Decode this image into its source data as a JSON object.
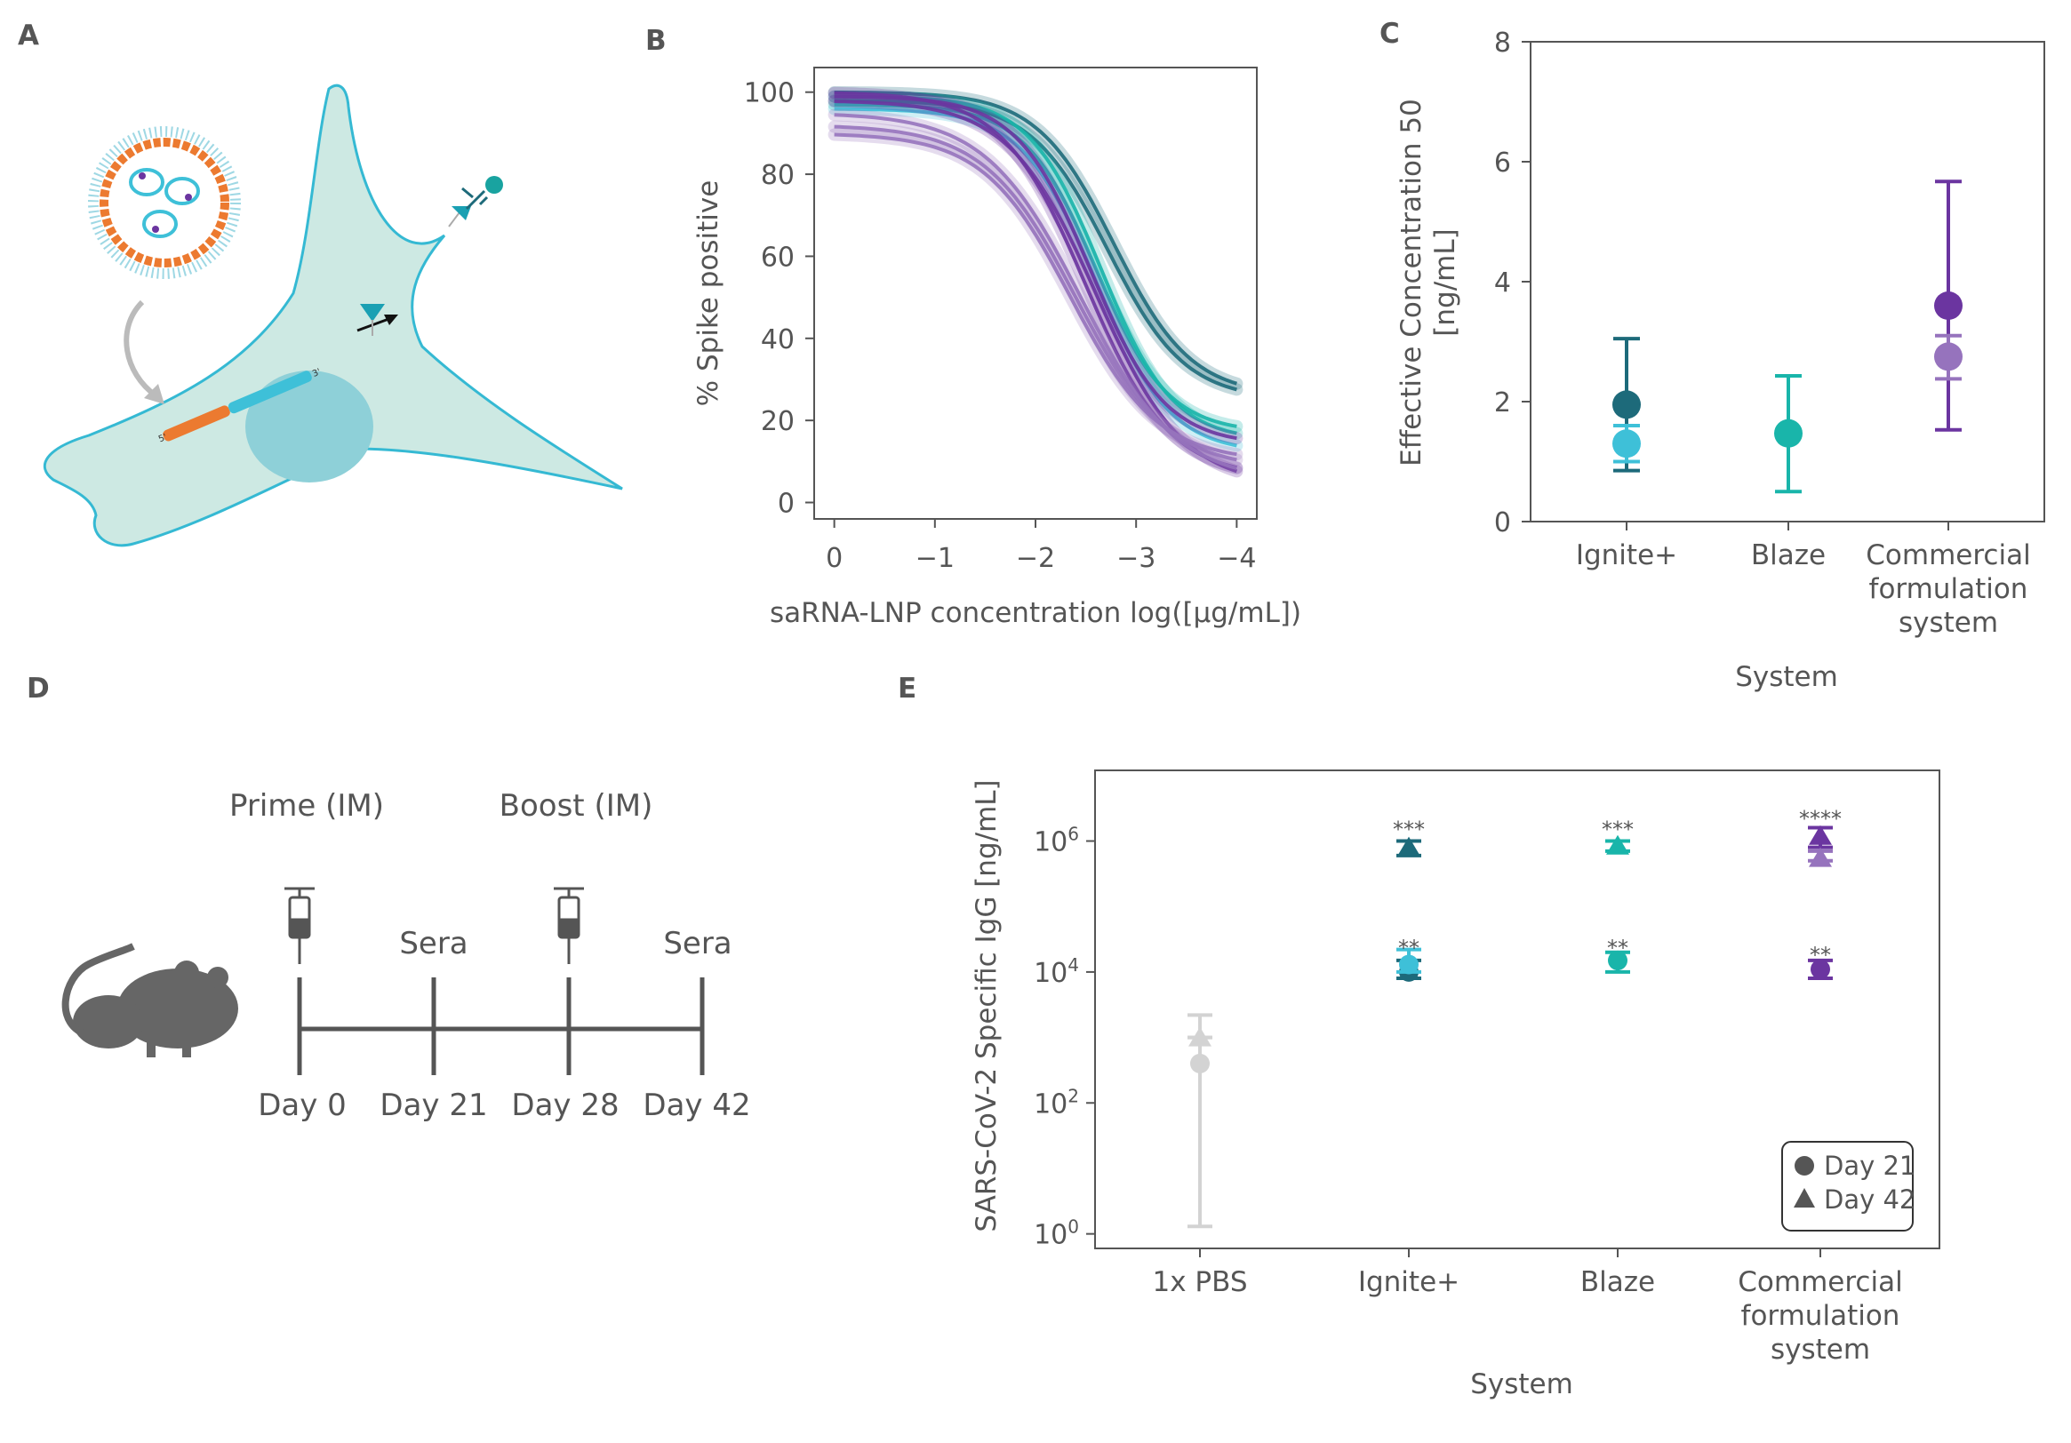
{
  "panels": {
    "a": {
      "letter": "A"
    },
    "b": {
      "letter": "B"
    },
    "c": {
      "letter": "C"
    },
    "d": {
      "letter": "D"
    },
    "e": {
      "letter": "E"
    }
  },
  "colors": {
    "dark_teal": "#1d6a7a",
    "light_teal": "#3ec0d8",
    "teal": "#19b5aa",
    "purple": "#6b35a0",
    "light_purple": "#9673bd",
    "grey": "#d3d3d3",
    "text": "#555555",
    "cell": "#cde9e3",
    "cell_edge": "#35b9d3",
    "nucleus": "#8ed0d8",
    "orange": "#ec7a30"
  },
  "timeline": {
    "prime_label": "Prime (IM)",
    "boost_label": "Boost (IM)",
    "sera_label_1": "Sera",
    "sera_label_2": "Sera",
    "days": [
      "Day 0",
      "Day 21",
      "Day 28",
      "Day 42"
    ]
  },
  "chart_data": [
    {
      "panel": "B",
      "type": "line",
      "title": "",
      "xlabel": "saRNA-LNP concentration log([μg/mL])",
      "ylabel": "% Spike positive",
      "xlim": [
        0.2,
        -4.2
      ],
      "ylim": [
        -4,
        106
      ],
      "x_ticks": [
        0,
        -1,
        -2,
        -3,
        -4
      ],
      "x_tick_labels": [
        "0",
        "−1",
        "−2",
        "−3",
        "−4"
      ],
      "y_ticks": [
        0,
        20,
        40,
        60,
        80,
        100
      ],
      "y_tick_labels": [
        "0",
        "20",
        "40",
        "60",
        "80",
        "100"
      ],
      "x_range": [
        0,
        -4
      ],
      "series": [
        {
          "name": "dark teal 1",
          "color": "#1d6a7a",
          "top": 100,
          "bottom": 26,
          "ec50": -2.78,
          "slope": 2.6
        },
        {
          "name": "dark teal 2",
          "color": "#1d6a7a",
          "top": 98,
          "bottom": 25,
          "ec50": -2.72,
          "slope": 2.6
        },
        {
          "name": "teal 1",
          "color": "#19b5aa",
          "top": 99,
          "bottom": 15,
          "ec50": -2.65,
          "slope": 2.8
        },
        {
          "name": "teal 2",
          "color": "#19b5aa",
          "top": 97,
          "bottom": 17,
          "ec50": -2.6,
          "slope": 2.8
        },
        {
          "name": "light teal",
          "color": "#3ec0d8",
          "top": 96,
          "bottom": 12,
          "ec50": -2.6,
          "slope": 2.7
        },
        {
          "name": "purple 1",
          "color": "#6b35a0",
          "top": 99,
          "bottom": 14,
          "ec50": -2.55,
          "slope": 2.7
        },
        {
          "name": "purple 2",
          "color": "#6b35a0",
          "top": 98,
          "bottom": 4,
          "ec50": -2.6,
          "slope": 2.3
        },
        {
          "name": "purple 3",
          "color": "#6b35a0",
          "top": 100,
          "bottom": 6,
          "ec50": -2.5,
          "slope": 2.4
        },
        {
          "name": "light purple 1",
          "color": "#9673bd",
          "top": 92,
          "bottom": 8,
          "ec50": -2.4,
          "slope": 2.2
        },
        {
          "name": "light purple 2",
          "color": "#9673bd",
          "top": 90,
          "bottom": 10,
          "ec50": -2.35,
          "slope": 2.3
        },
        {
          "name": "light purple 3",
          "color": "#9673bd",
          "top": 95,
          "bottom": 5,
          "ec50": -2.45,
          "slope": 2.1
        }
      ]
    },
    {
      "panel": "C",
      "type": "scatter",
      "title": "",
      "xlabel": "System",
      "ylabel_line1": "Effective Concentration 50",
      "ylabel_line2": "[ng/mL]",
      "ylim": [
        0,
        8
      ],
      "y_ticks": [
        0,
        2,
        4,
        6,
        8
      ],
      "y_tick_labels": [
        "0",
        "2",
        "4",
        "6",
        "8"
      ],
      "categories": [
        {
          "line1": "Ignite+",
          "line2": "",
          "line3": ""
        },
        {
          "line1": "Blaze",
          "line2": "",
          "line3": ""
        },
        {
          "line1": "Commercial",
          "line2": "formulation",
          "line3": "system"
        }
      ],
      "points": [
        {
          "category": 0,
          "value": 1.95,
          "low": 0.85,
          "high": 3.05,
          "color": "#1d6a7a"
        },
        {
          "category": 0,
          "value": 1.3,
          "low": 1.0,
          "high": 1.6,
          "color": "#3ec0d8"
        },
        {
          "category": 1,
          "value": 1.47,
          "low": 0.5,
          "high": 2.43,
          "color": "#19b5aa"
        },
        {
          "category": 2,
          "value": 3.6,
          "low": 1.53,
          "high": 5.67,
          "color": "#6b35a0"
        },
        {
          "category": 2,
          "value": 2.75,
          "low": 2.38,
          "high": 3.1,
          "color": "#9673bd"
        }
      ]
    },
    {
      "panel": "E",
      "type": "scatter",
      "title": "",
      "xlabel": "System",
      "ylabel": "SARS-CoV-2 Specific IgG [ng/mL]",
      "yscale": "log",
      "ylim": [
        0.6,
        12000000
      ],
      "y_ticks": [
        1,
        100,
        10000,
        1000000
      ],
      "y_tick_base": [
        "10",
        "10",
        "10",
        "10"
      ],
      "y_tick_exp": [
        "0",
        "2",
        "4",
        "6"
      ],
      "categories": [
        {
          "line1": "1x PBS",
          "line2": "",
          "line3": ""
        },
        {
          "line1": "Ignite+",
          "line2": "",
          "line3": ""
        },
        {
          "line1": "Blaze",
          "line2": "",
          "line3": ""
        },
        {
          "line1": "Commercial",
          "line2": "formulation",
          "line3": "system"
        }
      ],
      "points": [
        {
          "category": 0,
          "marker": "circle",
          "value": 400,
          "low": 1.3,
          "high": 1000,
          "color": "#d3d3d3"
        },
        {
          "category": 0,
          "marker": "triangle",
          "value": 1000,
          "low": 1000,
          "high": 2200,
          "color": "#d3d3d3"
        },
        {
          "category": 1,
          "marker": "circle",
          "value": 10000,
          "low": 8000,
          "high": 15000,
          "color": "#1d6a7a"
        },
        {
          "category": 1,
          "marker": "circle",
          "value": 13000,
          "low": 10000,
          "high": 22000,
          "color": "#3ec0d8"
        },
        {
          "category": 1,
          "marker": "triangle",
          "value": 800000,
          "low": 600000,
          "high": 1000000,
          "color": "#1d6a7a"
        },
        {
          "category": 2,
          "marker": "circle",
          "value": 15000,
          "low": 10000,
          "high": 20000,
          "color": "#19b5aa"
        },
        {
          "category": 2,
          "marker": "triangle",
          "value": 850000,
          "low": 700000,
          "high": 1000000,
          "color": "#19b5aa"
        },
        {
          "category": 3,
          "marker": "circle",
          "value": 11000,
          "low": 8000,
          "high": 15000,
          "color": "#6b35a0"
        },
        {
          "category": 3,
          "marker": "triangle",
          "value": 1200000,
          "low": 800000,
          "high": 1600000,
          "color": "#6b35a0"
        },
        {
          "category": 3,
          "marker": "triangle",
          "value": 550000,
          "low": 500000,
          "high": 700000,
          "color": "#9673bd"
        }
      ],
      "significance": [
        {
          "category": 1,
          "label": "***",
          "value": 1500000
        },
        {
          "category": 2,
          "label": "***",
          "value": 1500000
        },
        {
          "category": 3,
          "label": "****",
          "value": 2200000
        },
        {
          "category": 1,
          "label": "**",
          "value": 23000
        },
        {
          "category": 2,
          "label": "**",
          "value": 23000
        },
        {
          "category": 3,
          "label": "**",
          "value": 18000
        }
      ],
      "legend": {
        "position": "bottom-right",
        "entries": [
          {
            "marker": "circle",
            "label": "Day 21"
          },
          {
            "marker": "triangle",
            "label": "Day 42"
          }
        ]
      }
    }
  ]
}
